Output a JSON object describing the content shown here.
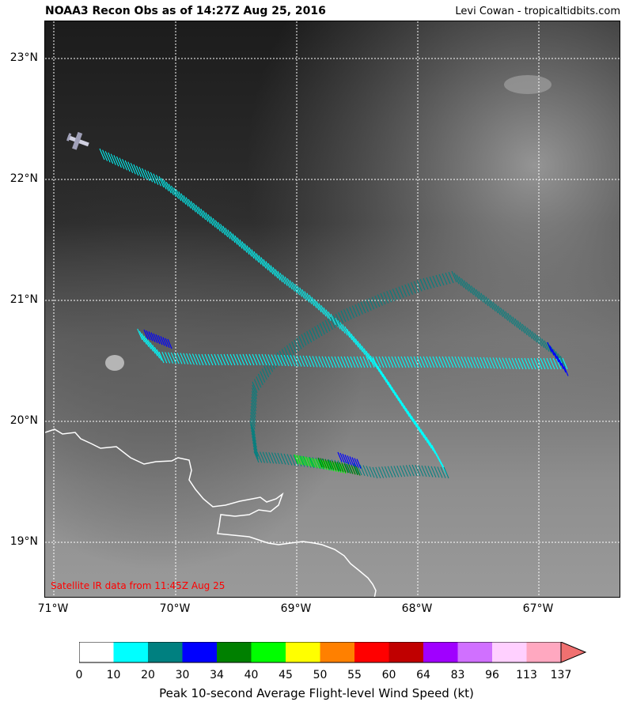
{
  "title": "NOAA3 Recon Obs as of 14:27Z Aug 25, 2016",
  "credit": "Levi Cowan - tropicaltidbits.com",
  "satellite_note": "Satellite IR data from 11:45Z Aug 25",
  "lat_labels": [
    "23°N",
    "22°N",
    "21°N",
    "20°N",
    "19°N"
  ],
  "lon_labels": [
    "71°W",
    "70°W",
    "69°W",
    "68°W",
    "67°W"
  ],
  "colorbar": {
    "ticks": [
      "0",
      "10",
      "20",
      "30",
      "34",
      "40",
      "45",
      "50",
      "55",
      "60",
      "64",
      "83",
      "96",
      "113",
      "137"
    ],
    "colors": [
      "#ffffff",
      "#00ffff",
      "#008080",
      "#0000ff",
      "#008000",
      "#00ff00",
      "#ffff00",
      "#ff8000",
      "#ff0000",
      "#c00000",
      "#a000ff",
      "#d070ff",
      "#ffd0ff",
      "#ffa8c0"
    ],
    "extend_color": "#f07070",
    "label": "Peak 10-second Average Flight-level Wind Speed (kt)"
  },
  "colors": {
    "coastline": "#ffffff",
    "grid": "#ffffff",
    "note": "#ff0000"
  }
}
